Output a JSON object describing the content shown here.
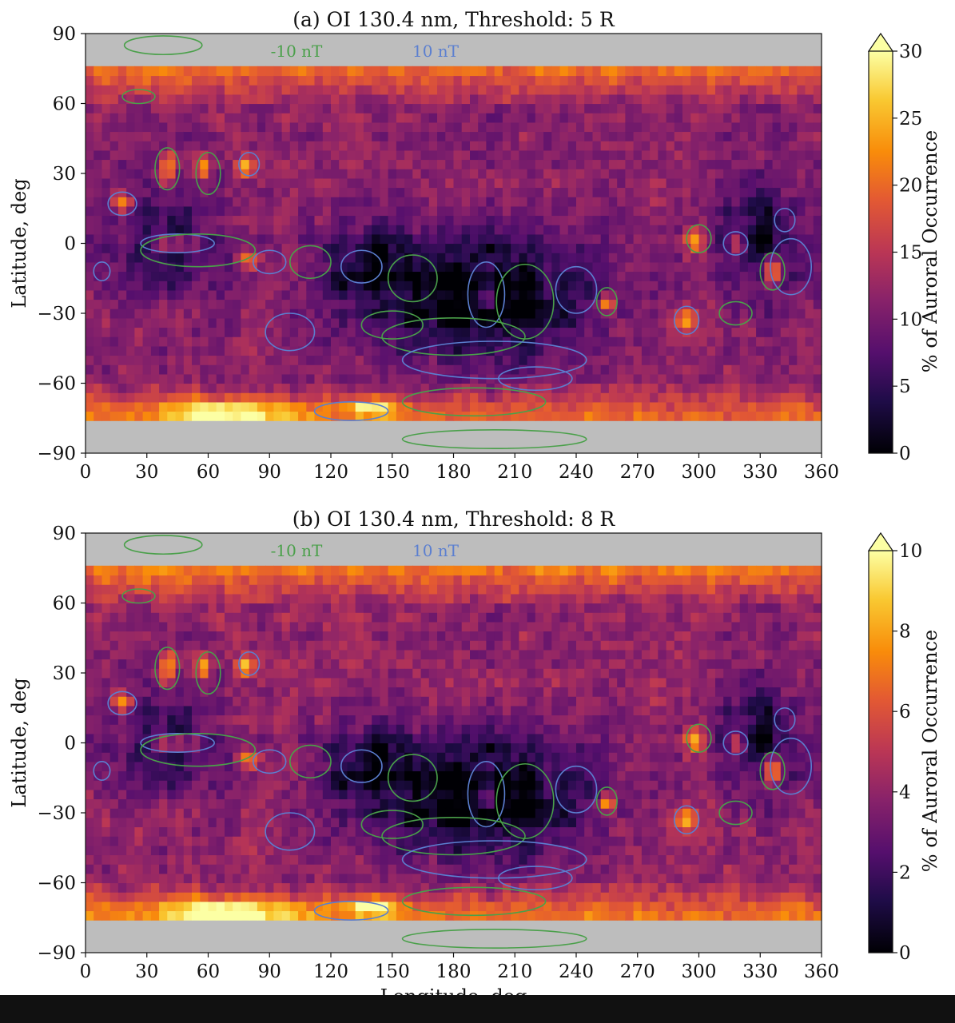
{
  "colors": {
    "mask_gray": "#bdbdbd",
    "contour_negative": "#4aa04a",
    "contour_positive": "#5b7fd0",
    "colormap": "inferno"
  },
  "shared": {
    "xlabel": "Longitude, deg",
    "ylabel": "Latitude, deg",
    "xlim": [
      0,
      360
    ],
    "ylim": [
      -90,
      90
    ],
    "xticks": [
      "0",
      "30",
      "60",
      "90",
      "120",
      "150",
      "180",
      "210",
      "240",
      "270",
      "300",
      "330",
      "360"
    ],
    "yticks": [
      "90",
      "60",
      "30",
      "0",
      "−30",
      "−60",
      "−90"
    ],
    "legend_negative": "-10 nT",
    "legend_positive": "10 nT"
  },
  "chart_data": [
    {
      "type": "heatmap",
      "title": "(a) OI 130.4 nm, Threshold: 5 R",
      "colorbar_label": "% of Auroral Occurrence",
      "colorbar_ticks": [
        "0",
        "5",
        "10",
        "15",
        "20",
        "25",
        "30"
      ],
      "colorbar_range": [
        0,
        30
      ],
      "colorbar_extend": "max",
      "data_latitude_range": [
        -76,
        74
      ]
    },
    {
      "type": "heatmap",
      "title": "(b) OI 130.4 nm, Threshold: 8 R",
      "colorbar_label": "% of Auroral Occurrence",
      "colorbar_ticks": [
        "0",
        "2",
        "4",
        "6",
        "8",
        "10"
      ],
      "colorbar_range": [
        0,
        10
      ],
      "colorbar_extend": "max",
      "data_latitude_range": [
        -76,
        74
      ]
    }
  ]
}
